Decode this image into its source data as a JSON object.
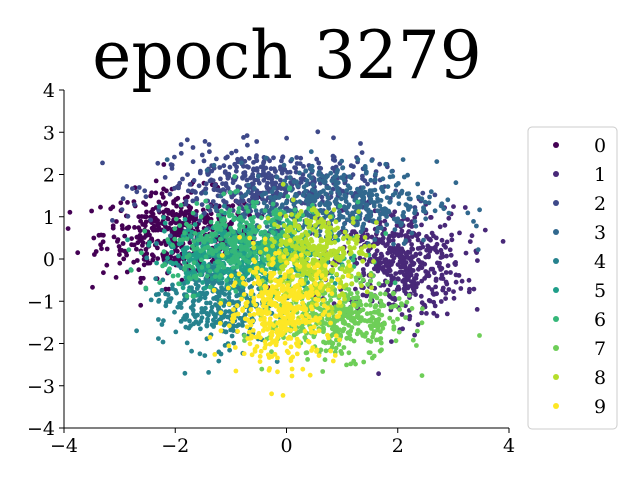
{
  "chart_data": {
    "type": "scatter",
    "title": "epoch 3279",
    "xlabel": "",
    "ylabel": "",
    "xlim": [
      -4,
      4
    ],
    "ylim": [
      -4,
      4
    ],
    "xticks": [
      "−4",
      "−2",
      "0",
      "2",
      "4"
    ],
    "xtick_values": [
      -4,
      -2,
      0,
      2,
      4
    ],
    "yticks": [
      "4",
      "3",
      "2",
      "1",
      "0",
      "−1",
      "−2",
      "−3",
      "−4"
    ],
    "ytick_values": [
      4,
      3,
      2,
      1,
      0,
      -1,
      -2,
      -3,
      -4
    ],
    "grid": false,
    "legend_position": "right",
    "series": [
      {
        "name": "0",
        "color": "#440154",
        "center": [
          -1.9,
          0.6
        ],
        "spread": [
          0.7,
          0.5
        ],
        "count": 500
      },
      {
        "name": "1",
        "color": "#482878",
        "center": [
          2.0,
          -0.1
        ],
        "spread": [
          0.6,
          0.65
        ],
        "count": 500
      },
      {
        "name": "2",
        "color": "#3e4989",
        "center": [
          -0.3,
          1.7
        ],
        "spread": [
          1.0,
          0.45
        ],
        "count": 500
      },
      {
        "name": "3",
        "color": "#31688e",
        "center": [
          0.9,
          1.3
        ],
        "spread": [
          0.9,
          0.5
        ],
        "count": 450
      },
      {
        "name": "4",
        "color": "#26828e",
        "center": [
          -1.3,
          -0.9
        ],
        "spread": [
          0.5,
          0.6
        ],
        "count": 400
      },
      {
        "name": "5",
        "color": "#1f9e89",
        "center": [
          -0.8,
          0.1
        ],
        "spread": [
          0.7,
          0.4
        ],
        "count": 400
      },
      {
        "name": "6",
        "color": "#35b779",
        "center": [
          -0.6,
          0.3
        ],
        "spread": [
          0.8,
          0.5
        ],
        "count": 450
      },
      {
        "name": "7",
        "color": "#6ece58",
        "center": [
          0.9,
          -1.4
        ],
        "spread": [
          0.6,
          0.45
        ],
        "count": 450
      },
      {
        "name": "8",
        "color": "#b5de2b",
        "center": [
          0.5,
          0.1
        ],
        "spread": [
          0.45,
          0.55
        ],
        "count": 400
      },
      {
        "name": "9",
        "color": "#fde725",
        "center": [
          -0.1,
          -1.2
        ],
        "spread": [
          0.5,
          0.6
        ],
        "count": 450
      }
    ]
  }
}
